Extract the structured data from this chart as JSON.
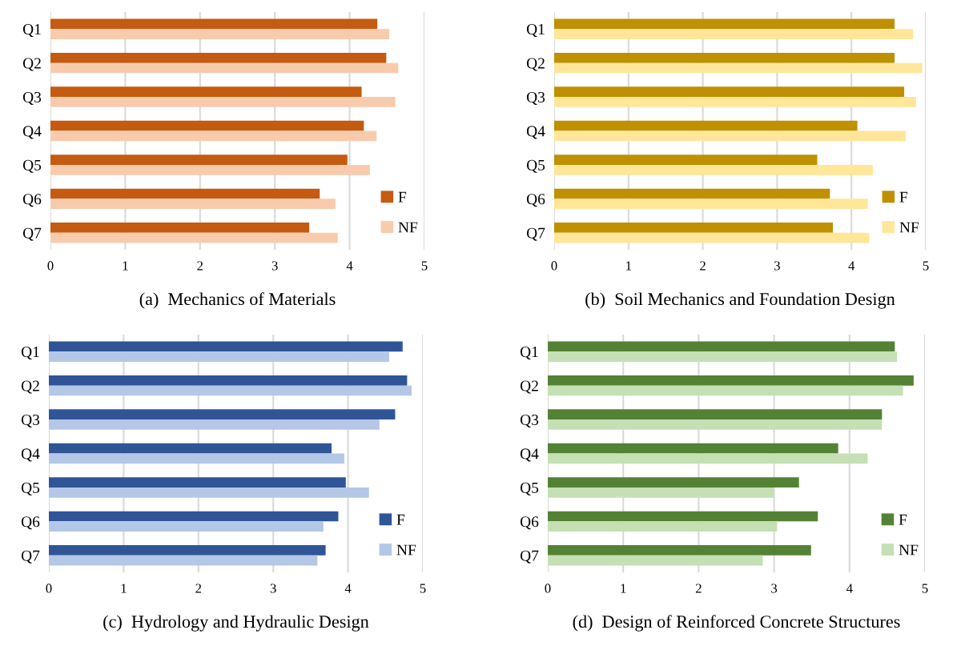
{
  "chart_data": [
    {
      "type": "bar",
      "orientation": "horizontal",
      "title": "(a)  Mechanics of Materials",
      "categories": [
        "Q1",
        "Q2",
        "Q3",
        "Q4",
        "Q5",
        "Q6",
        "Q7"
      ],
      "xlim": [
        0,
        5
      ],
      "xticks": [
        0,
        1,
        2,
        3,
        4,
        5
      ],
      "grid": "x",
      "legend": "lower right",
      "series": [
        {
          "name": "F",
          "color": "#c55a11",
          "values": [
            4.37,
            4.49,
            4.16,
            4.19,
            3.97,
            3.6,
            3.46
          ]
        },
        {
          "name": "NF",
          "color": "#f8cbad",
          "values": [
            4.53,
            4.65,
            4.61,
            4.36,
            4.27,
            3.81,
            3.84
          ]
        }
      ]
    },
    {
      "type": "bar",
      "orientation": "horizontal",
      "title": "(b)  Soil Mechanics and Foundation Design",
      "categories": [
        "Q1",
        "Q2",
        "Q3",
        "Q4",
        "Q5",
        "Q6",
        "Q7"
      ],
      "xlim": [
        0,
        5
      ],
      "xticks": [
        0,
        1,
        2,
        3,
        4,
        5
      ],
      "grid": "x",
      "legend": "lower right",
      "series": [
        {
          "name": "F",
          "color": "#bf9000",
          "values": [
            4.58,
            4.58,
            4.71,
            4.08,
            3.54,
            3.71,
            3.75
          ]
        },
        {
          "name": "NF",
          "color": "#ffe699",
          "values": [
            4.83,
            4.95,
            4.87,
            4.73,
            4.29,
            4.22,
            4.24
          ]
        }
      ]
    },
    {
      "type": "bar",
      "orientation": "horizontal",
      "title": "(c)  Hydrology and Hydraulic Design",
      "categories": [
        "Q1",
        "Q2",
        "Q3",
        "Q4",
        "Q5",
        "Q6",
        "Q7"
      ],
      "xlim": [
        0,
        5
      ],
      "xticks": [
        0,
        1,
        2,
        3,
        4,
        5
      ],
      "grid": "x",
      "legend": "lower right",
      "series": [
        {
          "name": "F",
          "color": "#2f5597",
          "values": [
            4.73,
            4.79,
            4.63,
            3.78,
            3.97,
            3.87,
            3.7
          ]
        },
        {
          "name": "NF",
          "color": "#b4c7e7",
          "values": [
            4.55,
            4.85,
            4.42,
            3.95,
            4.28,
            3.67,
            3.59
          ]
        }
      ]
    },
    {
      "type": "bar",
      "orientation": "horizontal",
      "title": "(d)  Design of Reinforced Concrete Structures",
      "categories": [
        "Q1",
        "Q2",
        "Q3",
        "Q4",
        "Q5",
        "Q6",
        "Q7"
      ],
      "xlim": [
        0,
        5
      ],
      "xticks": [
        0,
        1,
        2,
        3,
        4,
        5
      ],
      "grid": "x",
      "legend": "lower right",
      "series": [
        {
          "name": "F",
          "color": "#548235",
          "values": [
            4.6,
            4.85,
            4.43,
            3.85,
            3.33,
            3.58,
            3.49
          ]
        },
        {
          "name": "NF",
          "color": "#c5e0b4",
          "values": [
            4.63,
            4.71,
            4.43,
            4.24,
            3.0,
            3.04,
            2.85
          ]
        }
      ]
    }
  ]
}
